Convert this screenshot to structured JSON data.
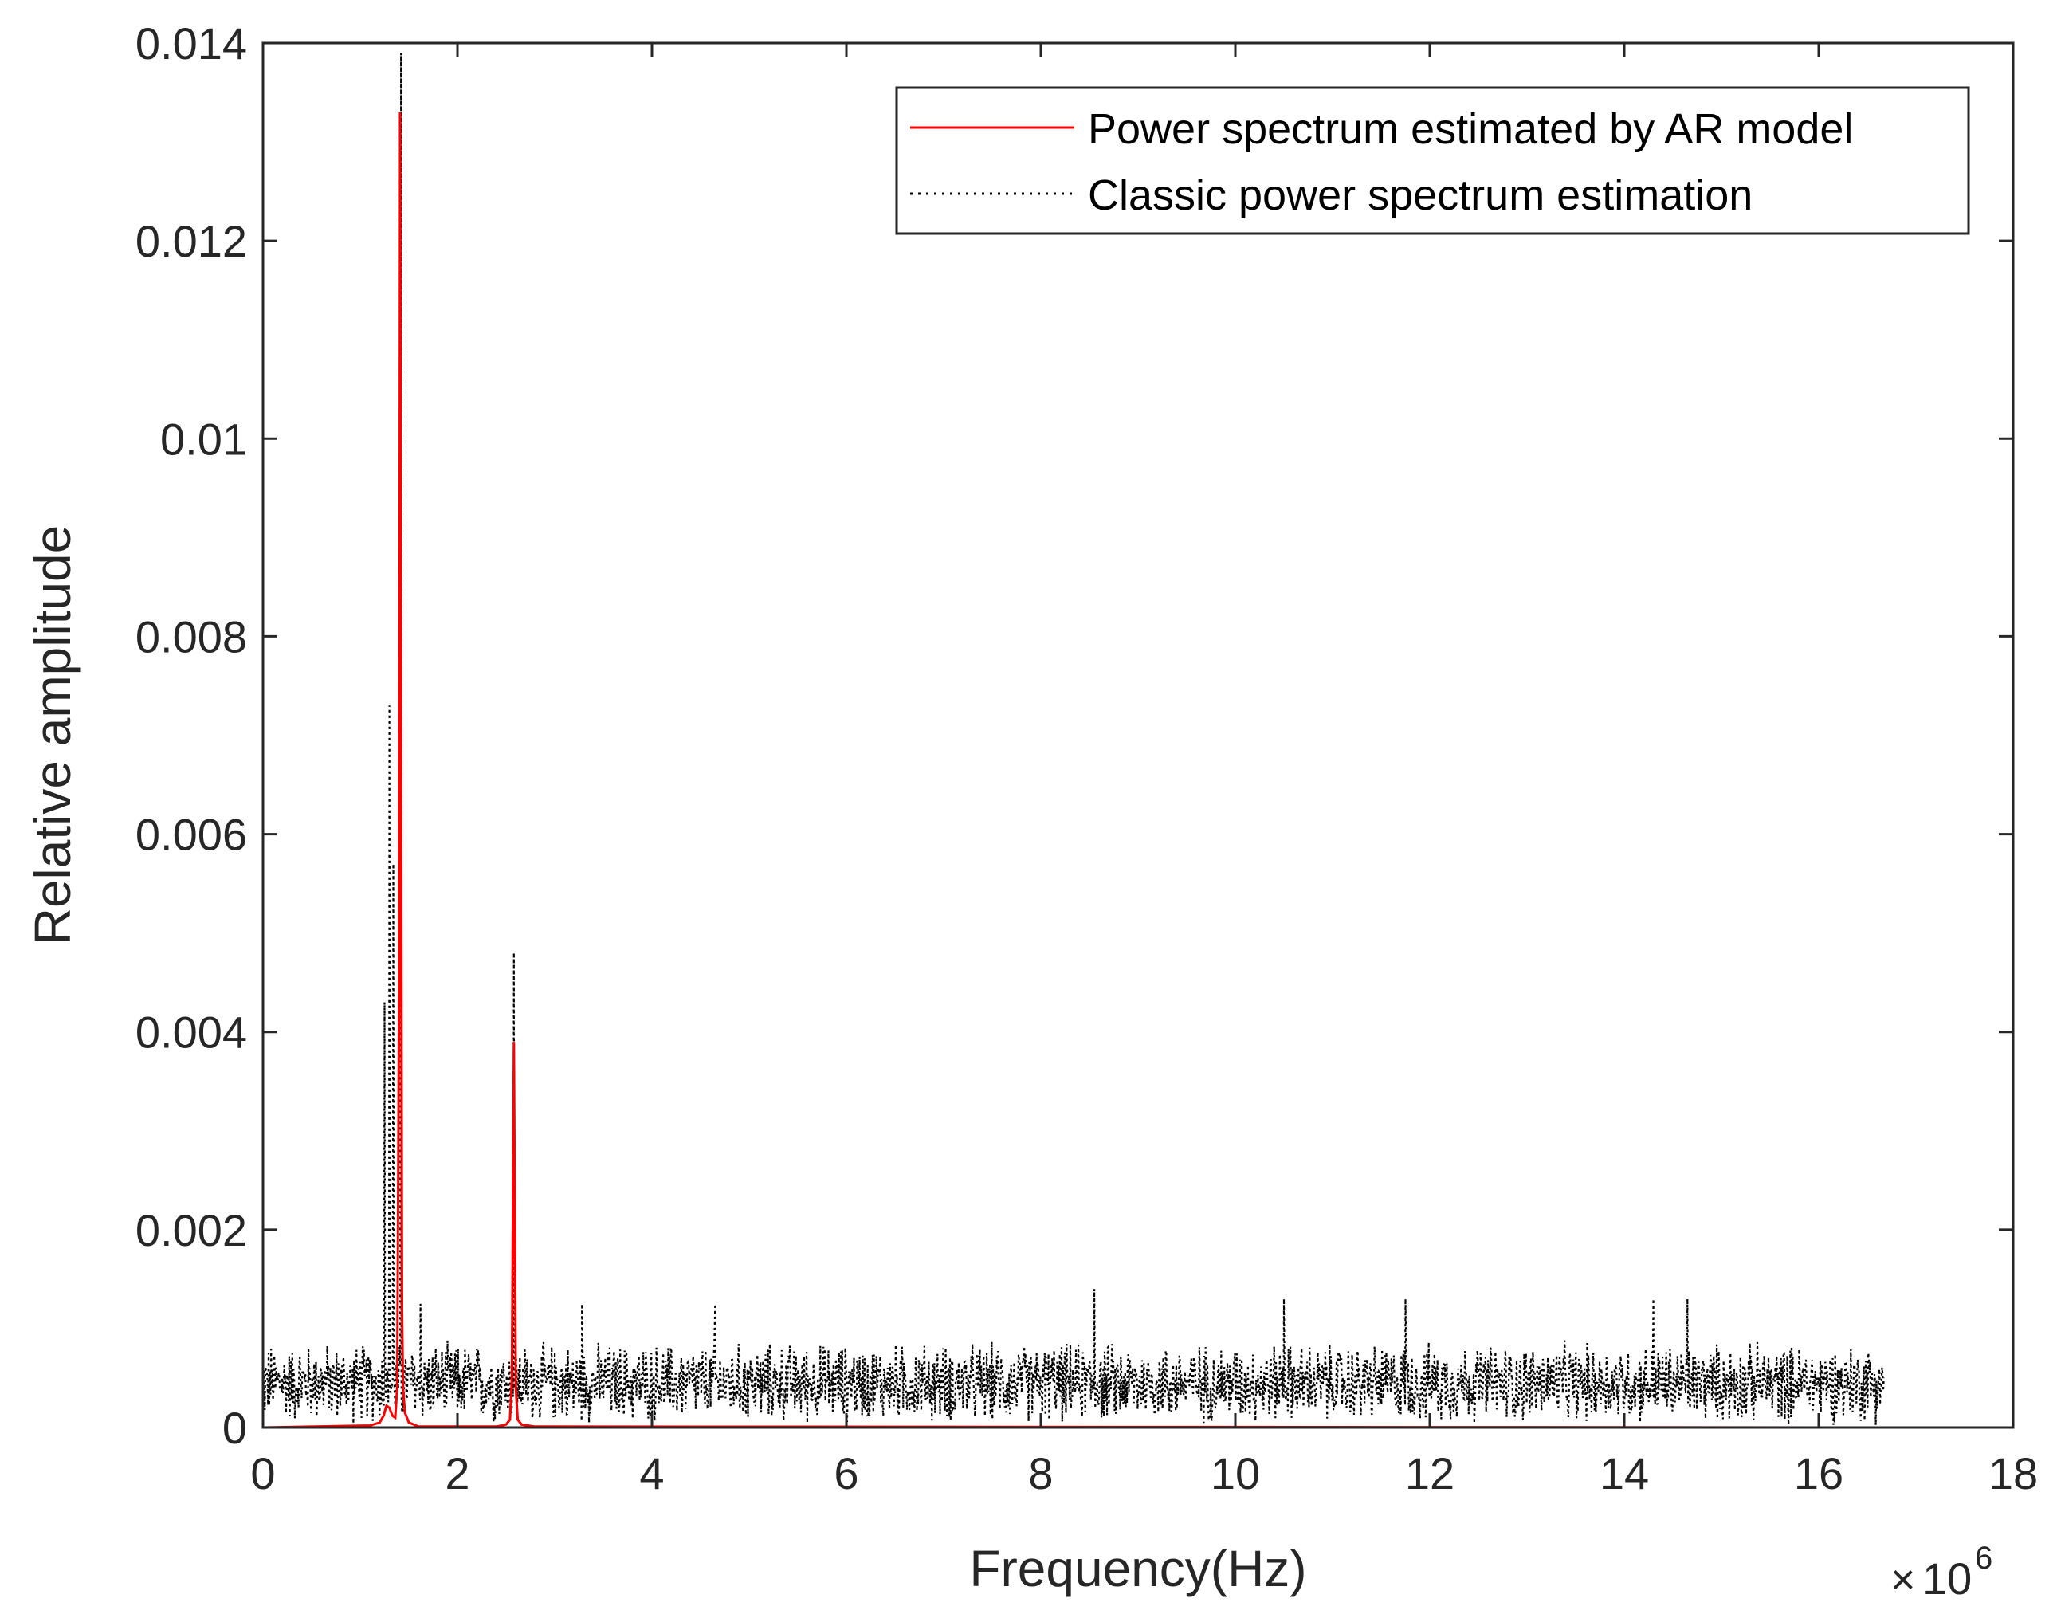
{
  "chart_data": {
    "type": "line",
    "title": "",
    "xlabel": "Frequency(Hz)",
    "ylabel": "Relative amplitude",
    "x_exponent": {
      "base": "10",
      "power": "6",
      "times": "×"
    },
    "xlim": [
      0,
      18
    ],
    "ylim": [
      0,
      0.014
    ],
    "x_ticks": [
      "0",
      "2",
      "4",
      "6",
      "8",
      "10",
      "12",
      "14",
      "16",
      "18"
    ],
    "y_ticks": [
      "0",
      "0.002",
      "0.004",
      "0.006",
      "0.008",
      "0.01",
      "0.012",
      "0.014"
    ],
    "grid": false,
    "legend_position": "top-right",
    "series": [
      {
        "name": "Power spectrum estimated by AR model",
        "color": "#ff0000",
        "style": "solid",
        "x": [
          0,
          1.1,
          1.2,
          1.24,
          1.27,
          1.3,
          1.33,
          1.36,
          1.38,
          1.4,
          1.41,
          1.42,
          1.43,
          1.44,
          1.46,
          1.5,
          1.6,
          2.4,
          2.5,
          2.54,
          2.56,
          2.58,
          2.6,
          2.62,
          2.66,
          2.8,
          16.67
        ],
        "values": [
          0,
          2e-05,
          5e-05,
          0.00012,
          0.00022,
          0.0002,
          0.00012,
          0.0001,
          0.0004,
          0.0045,
          0.0133,
          0.0065,
          0.0012,
          0.0004,
          0.00015,
          5e-05,
          1e-05,
          1e-05,
          3e-05,
          8e-05,
          0.0005,
          0.0039,
          0.0004,
          8e-05,
          3e-05,
          1e-05,
          0
        ]
      },
      {
        "name": "Classic power spectrum estimation",
        "color": "#000000",
        "style": "dotted",
        "x_range": [
          0,
          16.67
        ],
        "baseline": 0.00045,
        "noise_amplitude": 0.00045,
        "peaks": [
          {
            "x": 1.25,
            "y": 0.0043
          },
          {
            "x": 1.3,
            "y": 0.0073
          },
          {
            "x": 1.34,
            "y": 0.0057
          },
          {
            "x": 1.42,
            "y": 0.0139
          },
          {
            "x": 1.62,
            "y": 0.00125
          },
          {
            "x": 2.58,
            "y": 0.0048
          },
          {
            "x": 3.28,
            "y": 0.00125
          },
          {
            "x": 4.65,
            "y": 0.00125
          },
          {
            "x": 8.55,
            "y": 0.0014
          },
          {
            "x": 10.5,
            "y": 0.0013
          },
          {
            "x": 11.75,
            "y": 0.0013
          },
          {
            "x": 14.3,
            "y": 0.0013
          },
          {
            "x": 14.65,
            "y": 0.0013
          }
        ]
      }
    ]
  }
}
